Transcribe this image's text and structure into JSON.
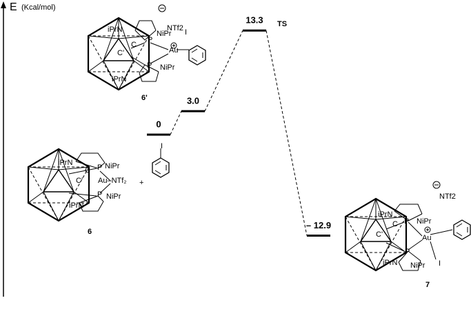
{
  "chart_data": {
    "type": "energy-profile",
    "y_label": "E",
    "y_unit": "(Kcal/mol)",
    "categories": [
      null,
      null,
      "TS",
      null
    ],
    "values": [
      0,
      3.0,
      13.3,
      -12.9
    ],
    "value_labels": [
      "0",
      "3.0",
      "13.3",
      "– 12.9"
    ],
    "ylim": [
      -20.7,
      16.5
    ],
    "color": "#000000",
    "annotations": [
      "NTf2",
      "iPrN",
      "NiPr",
      "P",
      "C",
      "C'",
      "Au",
      "I",
      "P",
      "NiPr",
      "iPrN",
      "6'",
      "iPrN",
      "NiPr",
      "P",
      "C",
      "C'",
      "Au–NTf₂",
      "+",
      "I",
      "P",
      "NiPr",
      "iPrN",
      "6",
      "NTf2",
      "iPrN",
      "P",
      "NiPr",
      "C",
      "C'",
      "Au",
      "I",
      "P",
      "NiPr",
      "iPrN",
      "7"
    ]
  }
}
